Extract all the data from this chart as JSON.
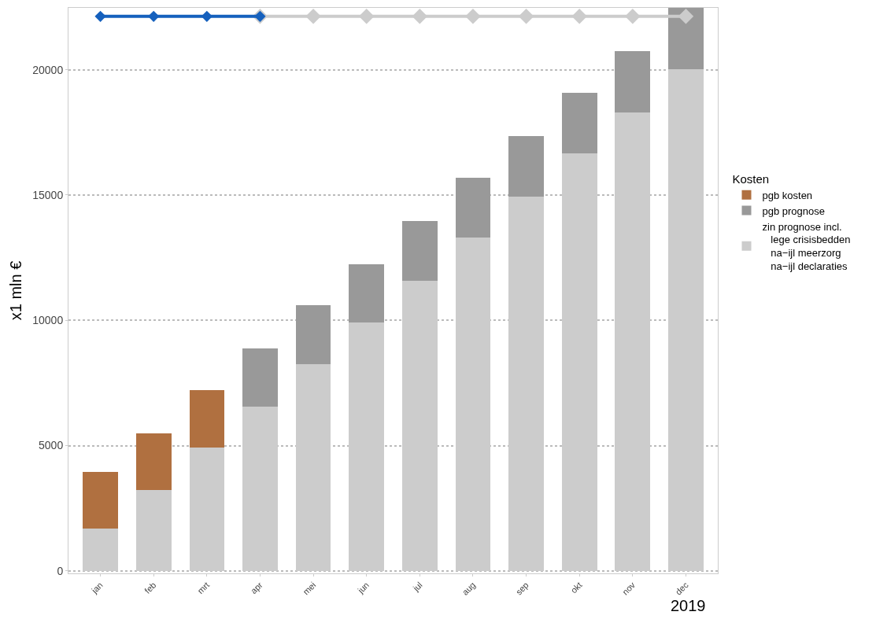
{
  "chart_data": {
    "type": "bar",
    "stacked": true,
    "ylabel": "x1 mln €",
    "xlabel": "2019",
    "legend_title": "Kosten",
    "categories": [
      "jan",
      "feb",
      "mrt",
      "apr",
      "mei",
      "jun",
      "jul",
      "aug",
      "sep",
      "okt",
      "nov",
      "dec"
    ],
    "series": [
      {
        "name": "zin prognose incl.\n   lege crisisbedden\n   na−ijl meerzorg\n   na−ijl declaraties",
        "color": "#cccccc",
        "values": [
          1690,
          3220,
          4910,
          6560,
          8250,
          9910,
          11590,
          13310,
          14940,
          16660,
          18310,
          20030
        ]
      },
      {
        "name": "pgb prognose",
        "color": "#999999",
        "values": [
          null,
          null,
          null,
          2310,
          2340,
          2340,
          2380,
          2380,
          2400,
          2410,
          2440,
          2440
        ]
      },
      {
        "name": "pgb kosten",
        "color": "#b07040",
        "values": [
          2250,
          2280,
          2310,
          null,
          null,
          null,
          null,
          null,
          null,
          null,
          null,
          null
        ]
      },
      {
        "type": "line",
        "color": "#cccccc",
        "values": [
          null,
          null,
          null,
          22130,
          22130,
          22130,
          22130,
          22130,
          22130,
          22130,
          22130,
          22130
        ]
      },
      {
        "type": "line",
        "color": "#1560bd",
        "values": [
          22130,
          22130,
          22130,
          22130,
          null,
          null,
          null,
          null,
          null,
          null,
          null,
          null
        ]
      }
    ],
    "marker": "diamond",
    "line_style": "solid",
    "ylim": [
      -100,
      22470
    ],
    "yticks": [
      0,
      5000,
      10000,
      15000,
      20000
    ],
    "grid": "y",
    "legend": "right"
  }
}
